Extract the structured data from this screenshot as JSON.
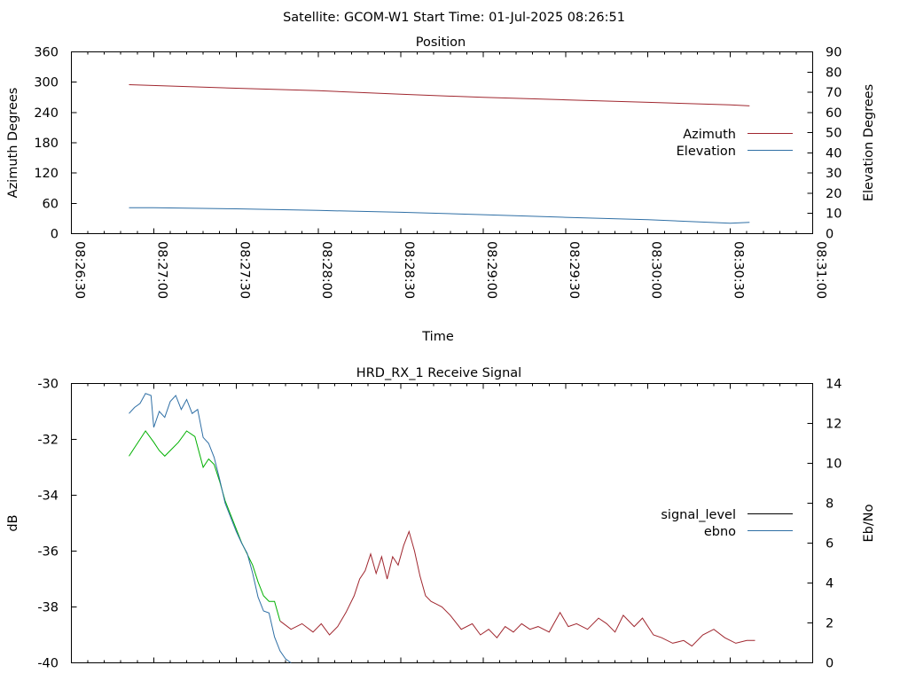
{
  "figure_title": "Satellite: GCOM-W1    Start Time: 01-Jul-2025 08:26:51",
  "chart_data": [
    {
      "type": "line",
      "title": "Position",
      "xlabel": "Time",
      "ylabel": "Azimuth Degrees",
      "y2label": "Elevation Degrees",
      "xlim": [
        "08:26:30",
        "08:31:00"
      ],
      "x_ticks": [
        "08:26:30",
        "08:27:00",
        "08:27:30",
        "08:28:00",
        "08:28:30",
        "08:29:00",
        "08:29:30",
        "08:30:00",
        "08:30:30",
        "08:31:00"
      ],
      "ylim": [
        0,
        360
      ],
      "y_ticks": [
        0,
        60,
        120,
        180,
        240,
        300,
        360
      ],
      "y2lim": [
        0,
        90
      ],
      "y2_ticks": [
        0,
        10,
        20,
        30,
        40,
        50,
        60,
        70,
        80,
        90
      ],
      "grid": false,
      "legend_position": "right",
      "series": [
        {
          "name": "Azimuth",
          "axis": "y",
          "color": "#a0272f",
          "x": [
            "08:26:51",
            "08:27:30",
            "08:28:00",
            "08:28:30",
            "08:29:00",
            "08:29:30",
            "08:30:00",
            "08:30:30",
            "08:30:37"
          ],
          "y": [
            295,
            288,
            283,
            276,
            270,
            265,
            260,
            255,
            253
          ]
        },
        {
          "name": "Elevation",
          "axis": "y2",
          "color": "#2f6fa5",
          "x": [
            "08:26:51",
            "08:27:00",
            "08:27:30",
            "08:28:00",
            "08:28:30",
            "08:29:00",
            "08:29:30",
            "08:30:00",
            "08:30:30",
            "08:30:37"
          ],
          "y": [
            12.8,
            12.8,
            12.3,
            11.5,
            10.6,
            9.4,
            8.1,
            6.9,
            5.2,
            5.6
          ]
        }
      ]
    },
    {
      "type": "line",
      "title": "HRD_RX_1 Receive Signal",
      "xlabel": "",
      "ylabel": "dB",
      "y2label": "Eb/No",
      "xlim": [
        "08:26:30",
        "08:31:00"
      ],
      "ylim": [
        -40,
        -30
      ],
      "y_ticks": [
        -40,
        -38,
        -36,
        -34,
        -32,
        -30
      ],
      "y2lim": [
        0,
        14
      ],
      "y2_ticks": [
        0,
        2,
        4,
        6,
        8,
        10,
        12,
        14
      ],
      "grid": false,
      "legend_position": "right",
      "legend": [
        {
          "name": "signal_level",
          "color": "#000000"
        },
        {
          "name": "ebno",
          "color": "#2f6fa5"
        }
      ],
      "signal_segments": [
        {
          "color": "#00b000",
          "x": [
            "08:26:51",
            "08:26:53",
            "08:26:55",
            "08:26:57",
            "08:27:00",
            "08:27:02",
            "08:27:04",
            "08:27:06",
            "08:27:09",
            "08:27:12",
            "08:27:15",
            "08:27:18",
            "08:27:20",
            "08:27:22",
            "08:27:24",
            "08:27:26",
            "08:27:28",
            "08:27:30",
            "08:27:32",
            "08:27:34",
            "08:27:36",
            "08:27:38",
            "08:27:40",
            "08:27:42",
            "08:27:44",
            "08:27:46"
          ],
          "y": [
            -32.6,
            -32.3,
            -32.0,
            -31.7,
            -32.1,
            -32.4,
            -32.6,
            -32.4,
            -32.1,
            -31.7,
            -31.9,
            -33.0,
            -32.7,
            -32.9,
            -33.5,
            -34.2,
            -34.7,
            -35.2,
            -35.7,
            -36.1,
            -36.5,
            -37.1,
            -37.6,
            -37.8,
            -37.8,
            -38.5
          ]
        },
        {
          "color": "#a0272f",
          "x": [
            "08:27:46",
            "08:27:50",
            "08:27:54",
            "08:27:58",
            "08:28:01",
            "08:28:04",
            "08:28:07",
            "08:28:10",
            "08:28:13",
            "08:28:15",
            "08:28:17",
            "08:28:19",
            "08:28:21",
            "08:28:23",
            "08:28:25",
            "08:28:27",
            "08:28:29",
            "08:28:31",
            "08:28:33",
            "08:28:35",
            "08:28:37",
            "08:28:39",
            "08:28:41",
            "08:28:43",
            "08:28:45",
            "08:28:48",
            "08:28:52",
            "08:28:56",
            "08:28:59",
            "08:29:02",
            "08:29:05",
            "08:29:08",
            "08:29:11",
            "08:29:14",
            "08:29:17",
            "08:29:20",
            "08:29:24",
            "08:29:28",
            "08:29:31",
            "08:29:34",
            "08:29:38",
            "08:29:42",
            "08:29:45",
            "08:29:48",
            "08:29:51",
            "08:29:55",
            "08:29:58",
            "08:30:02",
            "08:30:05",
            "08:30:09",
            "08:30:13",
            "08:30:16",
            "08:30:20",
            "08:30:24",
            "08:30:28",
            "08:30:32",
            "08:30:36",
            "08:30:39"
          ],
          "y": [
            -38.5,
            -38.8,
            -38.6,
            -38.9,
            -38.6,
            -39.0,
            -38.7,
            -38.2,
            -37.6,
            -37.0,
            -36.7,
            -36.1,
            -36.8,
            -36.2,
            -37.0,
            -36.2,
            -36.5,
            -35.8,
            -35.3,
            -36.0,
            -36.9,
            -37.6,
            -37.8,
            -37.9,
            -38.0,
            -38.3,
            -38.8,
            -38.6,
            -39.0,
            -38.8,
            -39.1,
            -38.7,
            -38.9,
            -38.6,
            -38.8,
            -38.7,
            -38.9,
            -38.2,
            -38.7,
            -38.6,
            -38.8,
            -38.4,
            -38.6,
            -38.9,
            -38.3,
            -38.7,
            -38.4,
            -39.0,
            -39.1,
            -39.3,
            -39.2,
            -39.4,
            -39.0,
            -38.8,
            -39.1,
            -39.3,
            -39.2,
            -39.2
          ]
        }
      ],
      "ebno": {
        "color": "#2f6fa5",
        "x": [
          "08:26:51",
          "08:26:53",
          "08:26:55",
          "08:26:57",
          "08:26:59",
          "08:27:00",
          "08:27:02",
          "08:27:04",
          "08:27:06",
          "08:27:08",
          "08:27:10",
          "08:27:12",
          "08:27:14",
          "08:27:16",
          "08:27:18",
          "08:27:20",
          "08:27:22",
          "08:27:24",
          "08:27:26",
          "08:27:28",
          "08:27:30",
          "08:27:32",
          "08:27:34",
          "08:27:36",
          "08:27:38",
          "08:27:40",
          "08:27:42",
          "08:27:44",
          "08:27:46",
          "08:27:48",
          "08:27:50"
        ],
        "y": [
          12.5,
          12.8,
          13.0,
          13.5,
          13.4,
          11.8,
          12.6,
          12.3,
          13.1,
          13.4,
          12.7,
          13.2,
          12.5,
          12.7,
          11.3,
          11.0,
          10.3,
          9.2,
          8.0,
          7.3,
          6.6,
          6.0,
          5.5,
          4.5,
          3.3,
          2.6,
          2.5,
          1.3,
          0.6,
          0.2,
          0.0
        ]
      }
    }
  ]
}
